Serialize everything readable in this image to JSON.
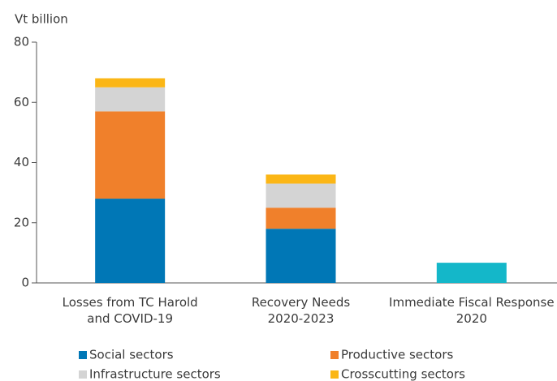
{
  "chart_data": {
    "type": "bar",
    "stacked": true,
    "y_label": "Vt billion",
    "categories": [
      "Losses from TC Harold\nand COVID-19",
      "Recovery Needs\n2020-2023",
      "Immediate Fiscal Response\n2020"
    ],
    "series": [
      {
        "name": "Social sectors",
        "color": "#0077b6",
        "values": [
          28,
          18,
          null
        ]
      },
      {
        "name": "Productive sectors",
        "color": "#f0802b",
        "values": [
          29,
          7,
          null
        ]
      },
      {
        "name": "Infrastructure sectors",
        "color": "#d4d4d4",
        "values": [
          8,
          8,
          null
        ]
      },
      {
        "name": "Crosscutting sectors",
        "color": "#fbb616",
        "values": [
          3,
          3,
          null
        ]
      },
      {
        "color": "#14b7c9",
        "values": [
          null,
          null,
          6.7
        ]
      }
    ],
    "ylim": [
      0,
      80
    ],
    "yticks": [
      0,
      20,
      40,
      60,
      80
    ],
    "grid": false
  }
}
